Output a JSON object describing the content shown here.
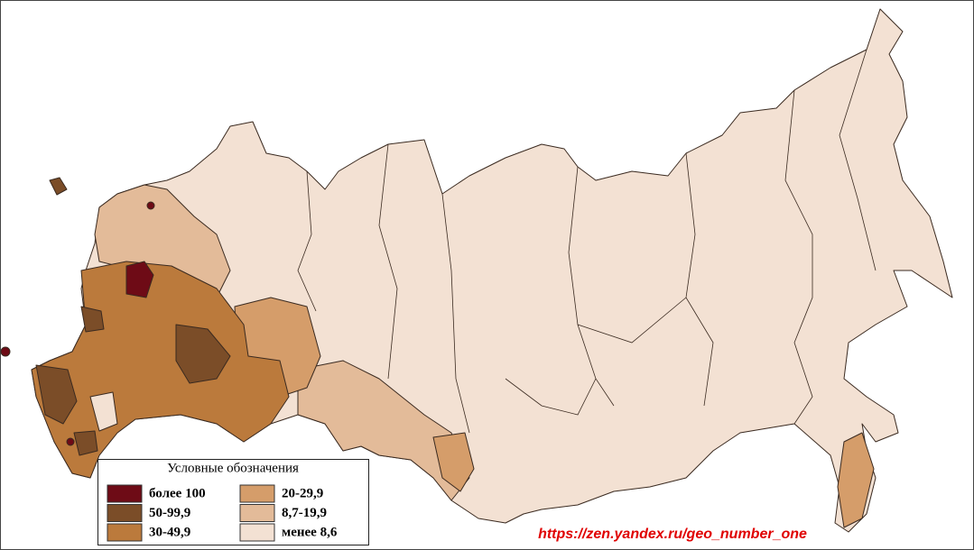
{
  "legend": {
    "title": "Условные обозначения",
    "items": [
      {
        "label": "более 100",
        "color": "#6e0b16"
      },
      {
        "label": "50-99,9",
        "color": "#7b4d28"
      },
      {
        "label": "30-49,9",
        "color": "#bb7a3c"
      },
      {
        "label": "20-29,9",
        "color": "#d59d6a"
      },
      {
        "label": "8,7-19,9",
        "color": "#e3bb99"
      },
      {
        "label": "менее 8,6",
        "color": "#f3e1d3"
      }
    ]
  },
  "watermark": "https://zen.yandex.ru/geo_number_one"
}
